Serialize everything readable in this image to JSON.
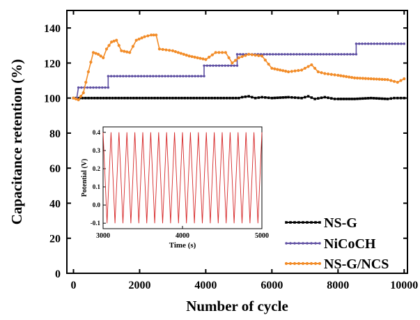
{
  "chart_data": [
    {
      "type": "line",
      "title": "",
      "xlabel": "Number of cycle",
      "ylabel": "Capacitance retention (%)",
      "xlim": [
        -200,
        10100
      ],
      "ylim": [
        0,
        150
      ],
      "xticks": [
        0,
        2000,
        4000,
        6000,
        8000,
        10000
      ],
      "yticks": [
        0,
        20,
        40,
        60,
        80,
        100,
        120,
        140
      ],
      "legend_position": "bottom-right",
      "grid": false,
      "series": [
        {
          "name": "NS-G",
          "color": "#000000",
          "marker": "square",
          "x": [
            0,
            1000,
            2000,
            3000,
            4000,
            5000,
            5100,
            5300,
            5500,
            5700,
            6000,
            6500,
            6900,
            7100,
            7300,
            7600,
            7900,
            8000,
            8500,
            9000,
            9500,
            9700,
            10000
          ],
          "y": [
            100,
            100,
            100,
            100,
            100,
            100,
            100.5,
            101,
            100,
            100.5,
            100,
            100.5,
            100,
            101,
            99.5,
            100.5,
            99.5,
            99.5,
            99.5,
            100,
            99.5,
            100,
            100
          ]
        },
        {
          "name": "NiCoCH",
          "color": "#5e4fa2",
          "marker": "diamond",
          "x": [
            0,
            100,
            150,
            1050,
            1050,
            3950,
            3950,
            4950,
            4950,
            8550,
            8550,
            10000
          ],
          "y": [
            100,
            100,
            106,
            106,
            112.5,
            112.5,
            118.5,
            118.5,
            125,
            125,
            131,
            131
          ]
        },
        {
          "name": "NS-G/NCS",
          "color": "#f28c28",
          "marker": "circle",
          "x": [
            0,
            150,
            300,
            450,
            600,
            750,
            900,
            1000,
            1150,
            1300,
            1450,
            1700,
            1900,
            2150,
            2350,
            2500,
            2600,
            3000,
            3500,
            4000,
            4300,
            4600,
            4800,
            5000,
            5300,
            5700,
            6000,
            6500,
            6900,
            7200,
            7400,
            7600,
            8000,
            8500,
            9000,
            9500,
            9800,
            10000
          ],
          "y": [
            100,
            99,
            103,
            115,
            126,
            125,
            123,
            128,
            132,
            133,
            127,
            126,
            133,
            135,
            136,
            136,
            128,
            127,
            124,
            122,
            126,
            126,
            120,
            123,
            125,
            124,
            117,
            115,
            116,
            119,
            115,
            114,
            113,
            111.5,
            111,
            110.5,
            109,
            111
          ]
        }
      ]
    },
    {
      "type": "line",
      "title": "",
      "xlabel": "Time (s)",
      "ylabel": "Potential (V)",
      "xlim": [
        3000,
        5000
      ],
      "ylim": [
        -0.13,
        0.43
      ],
      "xticks": [
        3000,
        4000,
        5000
      ],
      "yticks": [
        -0.1,
        0.0,
        0.1,
        0.2,
        0.3,
        0.4
      ],
      "ytick_labels": [
        "-0.1",
        "0.0",
        "0.1",
        "0.2",
        "0.3",
        "0.4"
      ],
      "series": [
        {
          "color": "#d62728",
          "waveform": "triangular",
          "cycles": 20,
          "min": -0.1,
          "max": 0.4
        }
      ]
    }
  ]
}
